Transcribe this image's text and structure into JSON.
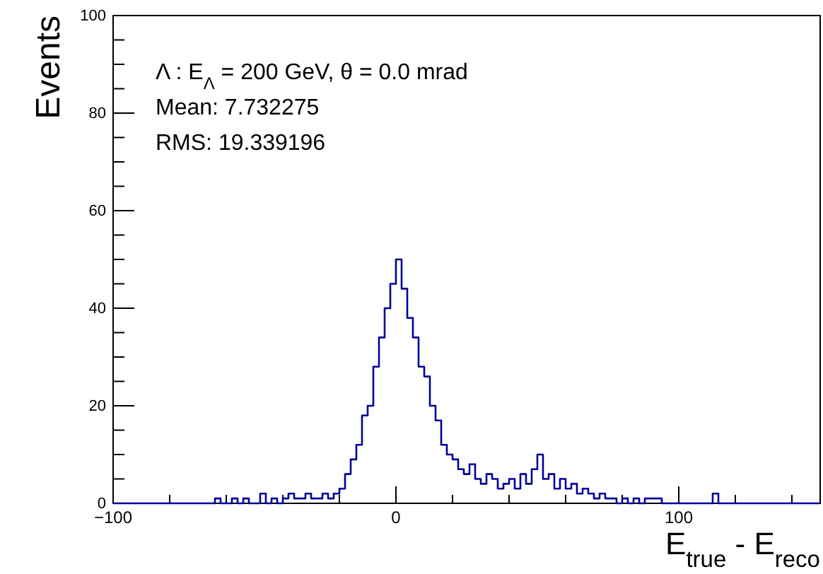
{
  "chart_data": {
    "type": "histogram",
    "xlabel": "E$_{true}$ - E$_{reco}$",
    "ylabel": "Events",
    "color": "#000099",
    "annotations": [
      "Λ : E$_{Λ}$ = 200 GeV, θ = 0.0 mrad",
      "Mean: 7.732275",
      "RMS: 19.339196"
    ],
    "xlim": [
      -100,
      150
    ],
    "ylim": [
      0,
      100
    ],
    "xticks": [
      {
        "value": -100,
        "label": "−100"
      },
      {
        "value": -80,
        "label": null
      },
      {
        "value": -60,
        "label": null
      },
      {
        "value": -40,
        "label": null
      },
      {
        "value": -20,
        "label": null
      },
      0,
      {
        "value": 20,
        "label": null
      },
      {
        "value": 40,
        "label": null
      },
      {
        "value": 60,
        "label": null
      },
      {
        "value": 80,
        "label": null
      },
      100,
      {
        "value": 120,
        "label": null
      },
      {
        "value": 140,
        "label": null
      }
    ],
    "yticks": [
      0,
      {
        "value": 5,
        "label": null
      },
      {
        "value": 10,
        "label": null
      },
      {
        "value": 15,
        "label": null
      },
      20,
      {
        "value": 25,
        "label": null
      },
      {
        "value": 30,
        "label": null
      },
      {
        "value": 35,
        "label": null
      },
      40,
      {
        "value": 45,
        "label": null
      },
      {
        "value": 50,
        "label": null
      },
      {
        "value": 55,
        "label": null
      },
      60,
      {
        "value": 65,
        "label": null
      },
      {
        "value": 70,
        "label": null
      },
      {
        "value": 75,
        "label": null
      },
      80,
      {
        "value": 85,
        "label": null
      },
      {
        "value": 90,
        "label": null
      },
      {
        "value": 95,
        "label": null
      },
      100
    ],
    "bins": [
      -100,
      -98,
      -96,
      -94,
      -92,
      -90,
      -88,
      -86,
      -84,
      -82,
      -80,
      -78,
      -76,
      -74,
      -72,
      -70,
      -68,
      -66,
      -64,
      -62,
      -60,
      -58,
      -56,
      -54,
      -52,
      -50,
      -48,
      -46,
      -44,
      -42,
      -40,
      -38,
      -36,
      -34,
      -32,
      -30,
      -28,
      -26,
      -24,
      -22,
      -20,
      -18,
      -16,
      -14,
      -12,
      -10,
      -8,
      -6,
      -4,
      -2,
      0,
      2,
      4,
      6,
      8,
      10,
      12,
      14,
      16,
      18,
      20,
      22,
      24,
      26,
      28,
      30,
      32,
      34,
      36,
      38,
      40,
      42,
      44,
      46,
      48,
      50,
      52,
      54,
      56,
      58,
      60,
      62,
      64,
      66,
      68,
      70,
      72,
      74,
      76,
      78,
      80,
      82,
      84,
      86,
      88,
      90,
      92,
      94,
      96,
      98,
      100,
      102,
      104,
      106,
      108,
      110,
      112,
      114,
      116,
      118,
      120,
      122,
      124,
      126,
      128,
      130,
      132,
      134,
      136,
      138,
      140,
      142,
      144,
      146,
      148,
      150
    ],
    "values": [
      0,
      0,
      0,
      0,
      0,
      0,
      0,
      0,
      0,
      0,
      0,
      0,
      0,
      0,
      0,
      0,
      0,
      0,
      1,
      0,
      0,
      1,
      0,
      1,
      0,
      0,
      2,
      0,
      1,
      0,
      1,
      2,
      1,
      1,
      2,
      1,
      1,
      2,
      1,
      2,
      3,
      6,
      9,
      12,
      18,
      20,
      28,
      34,
      40,
      45,
      50,
      44,
      38,
      34,
      28,
      26,
      20,
      17,
      12,
      10,
      9,
      7,
      6,
      8,
      5,
      4,
      6,
      5,
      3,
      4,
      5,
      3,
      6,
      4,
      7,
      10,
      5,
      6,
      3,
      5,
      3,
      4,
      2,
      3,
      2,
      1,
      2,
      1,
      1,
      0,
      1,
      0,
      1,
      0,
      1,
      1,
      1,
      0,
      0,
      0,
      0,
      0,
      0,
      0,
      0,
      0,
      2,
      0,
      0,
      0,
      0,
      0,
      0,
      0,
      0,
      0,
      0,
      0,
      0,
      0,
      0,
      0,
      0,
      0,
      0
    ]
  }
}
